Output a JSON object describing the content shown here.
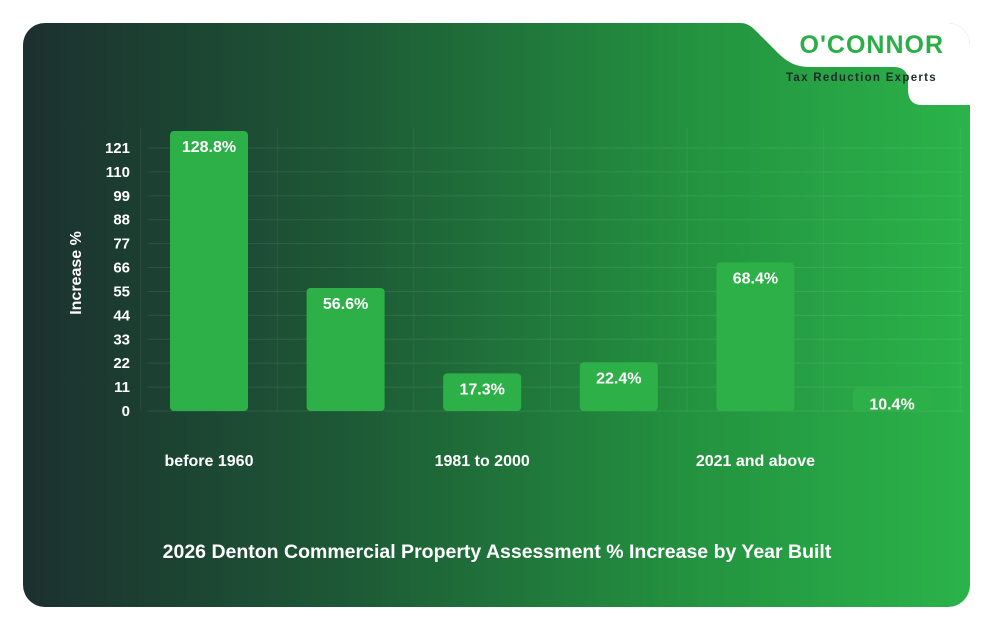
{
  "logo": {
    "name": "O'CONNOR",
    "tagline": "Tax Reduction Experts"
  },
  "colors": {
    "bar": "#2eb048",
    "text": "#ffffff",
    "brand_green": "#2aae47",
    "background_dark": "#1c302f"
  },
  "chart_data": {
    "type": "bar",
    "title": "2026 Denton Commercial Property Assessment % Increase by Year Built",
    "xlabel": "",
    "ylabel": "Increase %",
    "yticks": [
      0,
      11,
      22,
      33,
      44,
      55,
      66,
      77,
      88,
      99,
      110,
      121
    ],
    "ylim": [
      0,
      121
    ],
    "grid": true,
    "categories": [
      "before 1960",
      "",
      "1981 to 2000",
      "",
      "2021 and above",
      ""
    ],
    "values": [
      128.8,
      56.6,
      17.3,
      22.4,
      68.4,
      10.4
    ],
    "data_labels": [
      "128.8%",
      "56.6%",
      "17.3%",
      "22.4%",
      "68.4%",
      "10.4%"
    ]
  }
}
